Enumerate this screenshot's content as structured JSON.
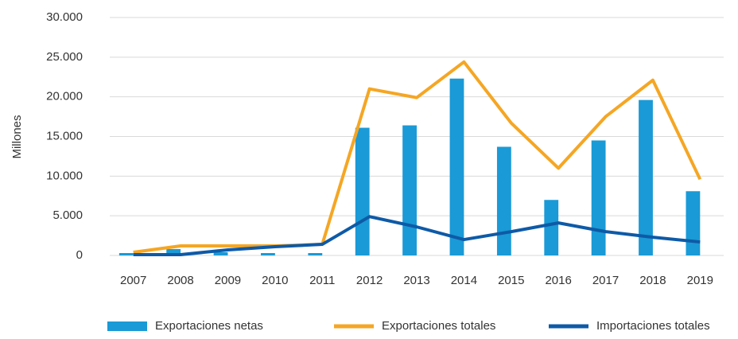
{
  "chart_data": {
    "type": "bar_line",
    "y_label": "Millones",
    "categories": [
      "2007",
      "2008",
      "2009",
      "2010",
      "2011",
      "2012",
      "2013",
      "2014",
      "2015",
      "2016",
      "2017",
      "2018",
      "2019"
    ],
    "ylim": [
      0,
      30000
    ],
    "yticks": [
      0,
      {
        "value": 5000,
        "label": "5.000"
      },
      {
        "value": 10000,
        "label": "10.000"
      },
      {
        "value": 15000,
        "label": "15.000"
      },
      {
        "value": 20000,
        "label": "20.000"
      },
      {
        "value": 25000,
        "label": "25.000"
      },
      {
        "value": 30000,
        "label": "30.000"
      }
    ],
    "grid": true,
    "legend": "bottom",
    "series": [
      {
        "name": "Exportaciones netas",
        "type": "bar",
        "color": "#1a9ad6",
        "values": [
          300,
          800,
          400,
          300,
          300,
          16100,
          16400,
          22300,
          13700,
          7000,
          14500,
          19600,
          8100
        ]
      },
      {
        "name": "Exportaciones totales",
        "type": "line",
        "color": "#f5a623",
        "values": [
          400,
          1200,
          1200,
          1200,
          1400,
          21000,
          19900,
          24400,
          16700,
          11000,
          17500,
          22100,
          9600
        ]
      },
      {
        "name": "Importaciones totales",
        "type": "line",
        "color": "#0e5aa7",
        "values": [
          100,
          100,
          700,
          1100,
          1400,
          4900,
          3600,
          2000,
          3000,
          4100,
          3000,
          2300,
          1700
        ]
      }
    ]
  }
}
